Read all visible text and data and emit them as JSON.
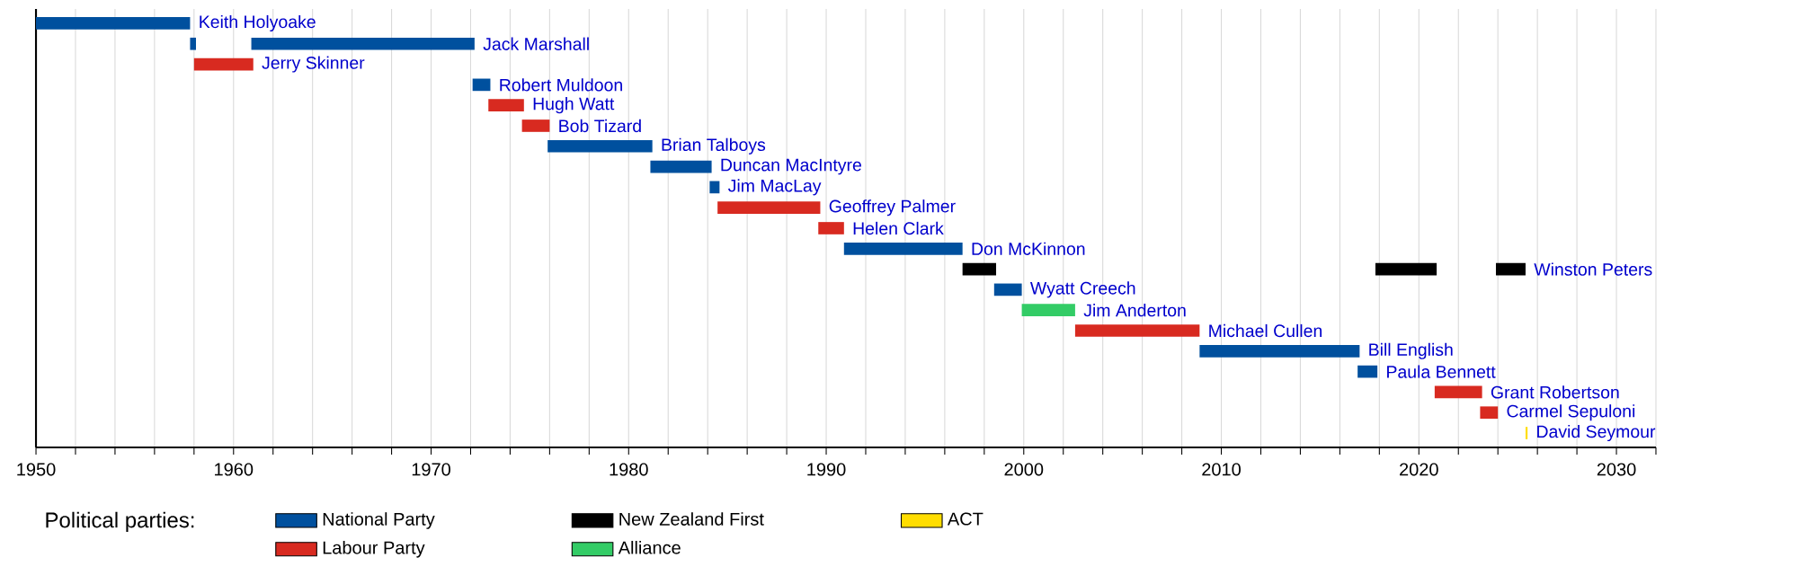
{
  "chart_data": {
    "type": "bar",
    "orientation": "horizontal",
    "categories": [
      "Keith Holyoake",
      "Jack Marshall",
      "Jerry Skinner",
      "Robert Muldoon",
      "Hugh Watt",
      "Bob Tizard",
      "Brian Talboys",
      "Duncan MacIntyre",
      "Jim MacLay",
      "Geoffrey Palmer",
      "Helen Clark",
      "Don McKinnon",
      "Winston Peters",
      "Wyatt Creech",
      "Jim Anderton",
      "Michael Cullen",
      "Bill English",
      "Paula Bennett",
      "Grant Robertson",
      "Carmel Sepuloni",
      "David Seymour"
    ],
    "series": [
      {
        "name": "National Party",
        "color": "#00509e",
        "base": [
          1950.0,
          1960.9,
          null,
          1972.1,
          null,
          null,
          1975.9,
          1981.1,
          1984.1,
          null,
          null,
          1990.9,
          null,
          1998.5,
          null,
          null,
          2008.9,
          2016.9,
          null,
          null,
          null
        ],
        "values": [
          7.8,
          11.3,
          null,
          0.9,
          null,
          null,
          5.3,
          3.1,
          0.5,
          null,
          null,
          6.0,
          null,
          1.4,
          null,
          null,
          8.1,
          1.0,
          null,
          null,
          null
        ]
      },
      {
        "name": "Labour Party",
        "color": "#d82a20",
        "base": [
          null,
          null,
          1958.0,
          null,
          1972.9,
          1974.6,
          null,
          null,
          null,
          1984.5,
          1989.6,
          null,
          null,
          null,
          null,
          2002.6,
          null,
          null,
          2020.8,
          2023.1,
          null
        ],
        "values": [
          null,
          null,
          3.0,
          null,
          1.8,
          1.4,
          null,
          null,
          null,
          5.2,
          1.3,
          null,
          null,
          null,
          null,
          6.3,
          null,
          null,
          2.4,
          0.9,
          null
        ]
      },
      {
        "name": "New Zealand First",
        "color": "#000000",
        "base": [
          null,
          null,
          null,
          null,
          null,
          null,
          null,
          null,
          null,
          null,
          null,
          null,
          1996.9,
          null,
          null,
          null,
          null,
          null,
          null,
          null,
          null
        ],
        "values": [
          null,
          null,
          null,
          null,
          null,
          null,
          null,
          null,
          null,
          null,
          null,
          null,
          1.7,
          null,
          null,
          null,
          null,
          null,
          null,
          null,
          null
        ]
      },
      {
        "name": "Alliance",
        "color": "#33cc66",
        "base": [
          null,
          null,
          null,
          null,
          null,
          null,
          null,
          null,
          null,
          null,
          null,
          null,
          null,
          null,
          1999.9,
          null,
          null,
          null,
          null,
          null,
          null
        ],
        "values": [
          null,
          null,
          null,
          null,
          null,
          null,
          null,
          null,
          null,
          null,
          null,
          null,
          null,
          null,
          2.7,
          null,
          null,
          null,
          null,
          null,
          null
        ]
      },
      {
        "name": "ACT",
        "color": "#ffdd00",
        "base": [
          null,
          null,
          null,
          null,
          null,
          null,
          null,
          null,
          null,
          null,
          null,
          null,
          null,
          null,
          null,
          null,
          null,
          null,
          null,
          null,
          2025.4
        ],
        "values": [
          null,
          null,
          null,
          null,
          null,
          null,
          null,
          null,
          null,
          null,
          null,
          null,
          null,
          null,
          null,
          null,
          null,
          null,
          null,
          null,
          0.1
        ]
      },
      {
        "color": "#00509e",
        "base": [
          null,
          1957.8,
          null,
          null,
          null,
          null,
          null,
          null,
          null,
          null,
          null,
          null,
          null,
          null,
          null,
          null,
          null,
          null,
          null,
          null,
          null
        ],
        "values": [
          null,
          0.3,
          null,
          null,
          null,
          null,
          null,
          null,
          null,
          null,
          null,
          null,
          null,
          null,
          null,
          null,
          null,
          null,
          null,
          null,
          null
        ]
      },
      {
        "color": "#000000",
        "base": [
          null,
          null,
          null,
          null,
          null,
          null,
          null,
          null,
          null,
          null,
          null,
          null,
          2017.8,
          null,
          null,
          null,
          null,
          null,
          null,
          null,
          null
        ],
        "values": [
          null,
          null,
          null,
          null,
          null,
          null,
          null,
          null,
          null,
          null,
          null,
          null,
          3.1,
          null,
          null,
          null,
          null,
          null,
          null,
          null,
          null
        ]
      },
      {
        "color": "#000000",
        "base": [
          null,
          null,
          null,
          null,
          null,
          null,
          null,
          null,
          null,
          null,
          null,
          null,
          2023.9,
          null,
          null,
          null,
          null,
          null,
          null,
          null,
          null
        ],
        "values": [
          null,
          null,
          null,
          null,
          null,
          null,
          null,
          null,
          null,
          null,
          null,
          null,
          1.5,
          null,
          null,
          null,
          null,
          null,
          null,
          null,
          null
        ]
      }
    ],
    "xlim": [
      1950,
      2032
    ],
    "xticks": [
      1950,
      {
        "value": 1952,
        "label": null
      },
      {
        "value": 1954,
        "label": null
      },
      {
        "value": 1956,
        "label": null
      },
      {
        "value": 1958,
        "label": null
      },
      1960,
      {
        "value": 1962,
        "label": null
      },
      {
        "value": 1964,
        "label": null
      },
      {
        "value": 1966,
        "label": null
      },
      {
        "value": 1968,
        "label": null
      },
      1970,
      {
        "value": 1972,
        "label": null
      },
      {
        "value": 1974,
        "label": null
      },
      {
        "value": 1976,
        "label": null
      },
      {
        "value": 1978,
        "label": null
      },
      1980,
      {
        "value": 1982,
        "label": null
      },
      {
        "value": 1984,
        "label": null
      },
      {
        "value": 1986,
        "label": null
      },
      {
        "value": 1988,
        "label": null
      },
      1990,
      {
        "value": 1992,
        "label": null
      },
      {
        "value": 1994,
        "label": null
      },
      {
        "value": 1996,
        "label": null
      },
      {
        "value": 1998,
        "label": null
      },
      2000,
      {
        "value": 2002,
        "label": null
      },
      {
        "value": 2004,
        "label": null
      },
      {
        "value": 2006,
        "label": null
      },
      {
        "value": 2008,
        "label": null
      },
      2010,
      {
        "value": 2012,
        "label": null
      },
      {
        "value": 2014,
        "label": null
      },
      {
        "value": 2016,
        "label": null
      },
      {
        "value": 2018,
        "label": null
      },
      2020,
      {
        "value": 2022,
        "label": null
      },
      {
        "value": 2024,
        "label": null
      },
      {
        "value": 2026,
        "label": null
      },
      {
        "value": 2028,
        "label": null
      },
      2030,
      {
        "value": 2032,
        "label": null
      }
    ],
    "grid": "x",
    "legend": "bottom",
    "legend_title": "Political parties:"
  }
}
